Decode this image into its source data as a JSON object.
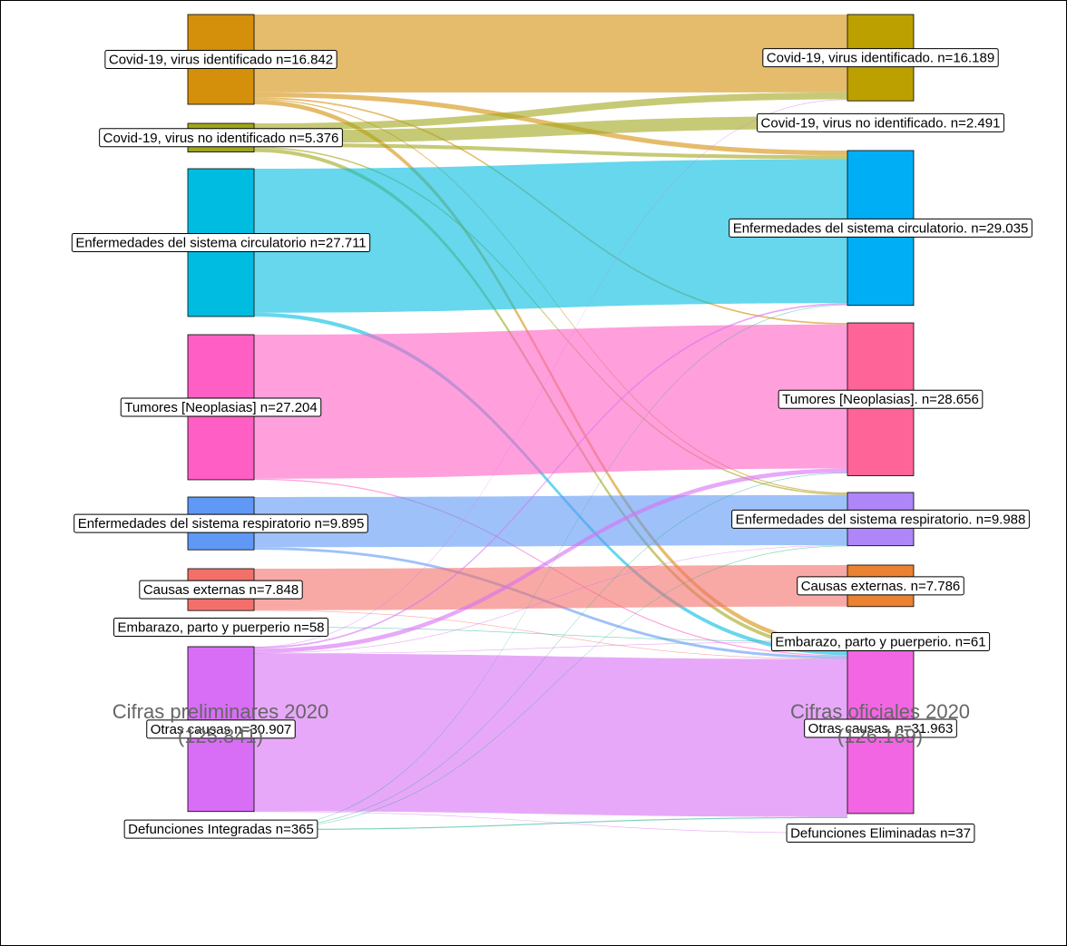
{
  "chart_data": {
    "type": "sankey",
    "left": [
      {
        "label": "Covid-19, virus identificado n=16.842",
        "value": 16842,
        "color": "#d4900a"
      },
      {
        "label": "Covid-19, virus no identificado n=5.376",
        "value": 5376,
        "color": "#a0a61a"
      },
      {
        "label": "Enfermedades del sistema circulatorio n=27.711",
        "value": 27711,
        "color": "#00bce0"
      },
      {
        "label": "Tumores [Neoplasias] n=27.204",
        "value": 27204,
        "color": "#ff5fc4"
      },
      {
        "label": "Enfermedades del sistema respiratorio n=9.895",
        "value": 9895,
        "color": "#5f98f5"
      },
      {
        "label": "Causas externas n=7.848",
        "value": 7848,
        "color": "#f3706a"
      },
      {
        "label": "Embarazo, parto y puerperio n=58",
        "value": 58,
        "color": "#1db28a"
      },
      {
        "label": "Otras causas n=30.907",
        "value": 30907,
        "color": "#d86ef5"
      },
      {
        "label": "Defunciones Integradas n=365",
        "value": 365,
        "color": "#20b08a"
      }
    ],
    "right": [
      {
        "label": "Covid-19, virus identificado. n=16.189",
        "value": 16189,
        "color": "#bba000"
      },
      {
        "label": "Covid-19, virus no identificado. n=2.491",
        "value": 2491,
        "color": "#8db838"
      },
      {
        "label": "Enfermedades del sistema circulatorio. n=29.035",
        "value": 29035,
        "color": "#00aef5"
      },
      {
        "label": "Tumores [Neoplasias]. n=28.656",
        "value": 28656,
        "color": "#ff6499"
      },
      {
        "label": "Enfermedades del sistema respiratorio. n=9.988",
        "value": 9988,
        "color": "#ae86f7"
      },
      {
        "label": "Causas externas. n=7.786",
        "value": 7786,
        "color": "#ea8232"
      },
      {
        "label": "Embarazo, parto y puerperio. n=61",
        "value": 61,
        "color": "#42b87a"
      },
      {
        "label": "Otras causas. n=31.963",
        "value": 31963,
        "color": "#f266e3"
      },
      {
        "label": "Defunciones Eliminadas n=37",
        "value": 37,
        "color": "#20b08a"
      }
    ],
    "links": [
      {
        "source": 0,
        "target": 0,
        "value": 14600
      },
      {
        "source": 0,
        "target": 2,
        "value": 900
      },
      {
        "source": 0,
        "target": 3,
        "value": 300
      },
      {
        "source": 0,
        "target": 4,
        "value": 200
      },
      {
        "source": 0,
        "target": 7,
        "value": 842
      },
      {
        "source": 1,
        "target": 0,
        "value": 1300
      },
      {
        "source": 1,
        "target": 1,
        "value": 2400
      },
      {
        "source": 1,
        "target": 2,
        "value": 700
      },
      {
        "source": 1,
        "target": 4,
        "value": 276
      },
      {
        "source": 1,
        "target": 7,
        "value": 700
      },
      {
        "source": 2,
        "target": 2,
        "value": 27000
      },
      {
        "source": 2,
        "target": 7,
        "value": 711
      },
      {
        "source": 3,
        "target": 3,
        "value": 27000
      },
      {
        "source": 3,
        "target": 7,
        "value": 204
      },
      {
        "source": 4,
        "target": 4,
        "value": 9400
      },
      {
        "source": 4,
        "target": 7,
        "value": 495
      },
      {
        "source": 5,
        "target": 5,
        "value": 7786
      },
      {
        "source": 5,
        "target": 7,
        "value": 62
      },
      {
        "source": 6,
        "target": 6,
        "value": 58
      },
      {
        "source": 7,
        "target": 0,
        "value": 67
      },
      {
        "source": 7,
        "target": 2,
        "value": 300
      },
      {
        "source": 7,
        "target": 3,
        "value": 800
      },
      {
        "source": 7,
        "target": 4,
        "value": 100
      },
      {
        "source": 7,
        "target": 6,
        "value": 3
      },
      {
        "source": 7,
        "target": 7,
        "value": 29600
      },
      {
        "source": 7,
        "target": 8,
        "value": 37
      },
      {
        "source": 8,
        "target": 2,
        "value": 65
      },
      {
        "source": 8,
        "target": 3,
        "value": 50
      },
      {
        "source": 8,
        "target": 4,
        "value": 50
      },
      {
        "source": 8,
        "target": 7,
        "value": 200
      }
    ],
    "footer_left": {
      "title": "Cifras preliminares 2020",
      "total": {
        "value": 125841,
        "label": "(125.841)"
      }
    },
    "footer_right": {
      "title": "Cifras oficiales 2020",
      "total": {
        "value": 126169,
        "label": "(126.169)"
      }
    }
  }
}
